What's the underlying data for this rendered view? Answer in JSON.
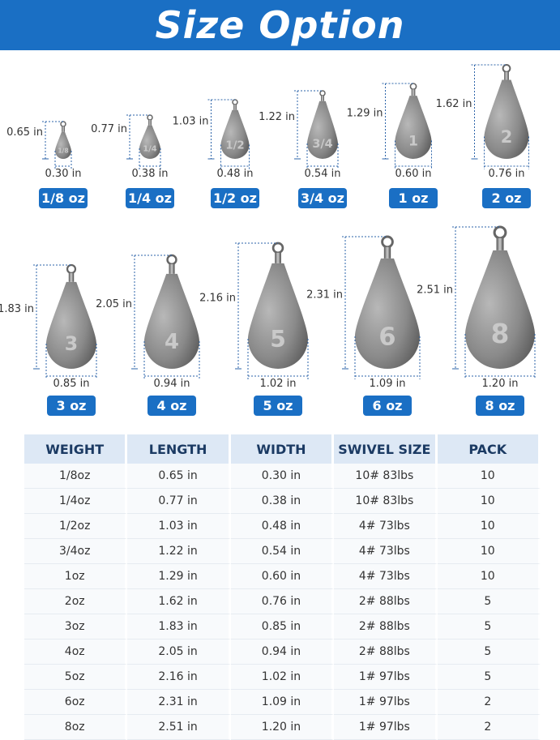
{
  "header": {
    "title": "Size Option"
  },
  "items": [
    {
      "weight": "1/8 oz",
      "length": "0.65 in",
      "width": "0.30 in",
      "stamp": "1/8"
    },
    {
      "weight": "1/4 oz",
      "length": "0.77 in",
      "width": "0.38 in",
      "stamp": "1/4"
    },
    {
      "weight": "1/2 oz",
      "length": "1.03 in",
      "width": "0.48 in",
      "stamp": "1/2"
    },
    {
      "weight": "3/4 oz",
      "length": "1.22 in",
      "width": "0.54 in",
      "stamp": "3/4"
    },
    {
      "weight": "1 oz",
      "length": "1.29 in",
      "width": "0.60 in",
      "stamp": "1"
    },
    {
      "weight": "2 oz",
      "length": "1.62 in",
      "width": "0.76 in",
      "stamp": "2"
    },
    {
      "weight": "3 oz",
      "length": "1.83 in",
      "width": "0.85 in",
      "stamp": "3"
    },
    {
      "weight": "4 oz",
      "length": "2.05 in",
      "width": "0.94 in",
      "stamp": "4"
    },
    {
      "weight": "5 oz",
      "length": "2.16 in",
      "width": "1.02 in",
      "stamp": "5"
    },
    {
      "weight": "6 oz",
      "length": "2.31 in",
      "width": "1.09 in",
      "stamp": "6"
    },
    {
      "weight": "8 oz",
      "length": "2.51 in",
      "width": "1.20 in",
      "stamp": "8"
    }
  ],
  "table": {
    "headers": [
      "WEIGHT",
      "LENGTH",
      "WIDTH",
      "SWIVEL SIZE",
      "PACK"
    ],
    "rows": [
      [
        "1/8oz",
        "0.65 in",
        "0.30 in",
        "10# 83lbs",
        "10"
      ],
      [
        "1/4oz",
        "0.77 in",
        "0.38 in",
        "10# 83lbs",
        "10"
      ],
      [
        "1/2oz",
        "1.03 in",
        "0.48 in",
        "4# 73lbs",
        "10"
      ],
      [
        "3/4oz",
        "1.22 in",
        "0.54 in",
        "4# 73lbs",
        "10"
      ],
      [
        "1oz",
        "1.29 in",
        "0.60 in",
        "4# 73lbs",
        "10"
      ],
      [
        "2oz",
        "1.62 in",
        "0.76 in",
        "2# 88lbs",
        "5"
      ],
      [
        "3oz",
        "1.83 in",
        "0.85 in",
        "2# 88lbs",
        "5"
      ],
      [
        "4oz",
        "2.05 in",
        "0.94 in",
        "2# 88lbs",
        "5"
      ],
      [
        "5oz",
        "2.16 in",
        "1.02 in",
        "1# 97lbs",
        "5"
      ],
      [
        "6oz",
        "2.31 in",
        "1.09 in",
        "1# 97lbs",
        "2"
      ],
      [
        "8oz",
        "2.51 in",
        "1.20 in",
        "1# 97lbs",
        "2"
      ]
    ]
  }
}
